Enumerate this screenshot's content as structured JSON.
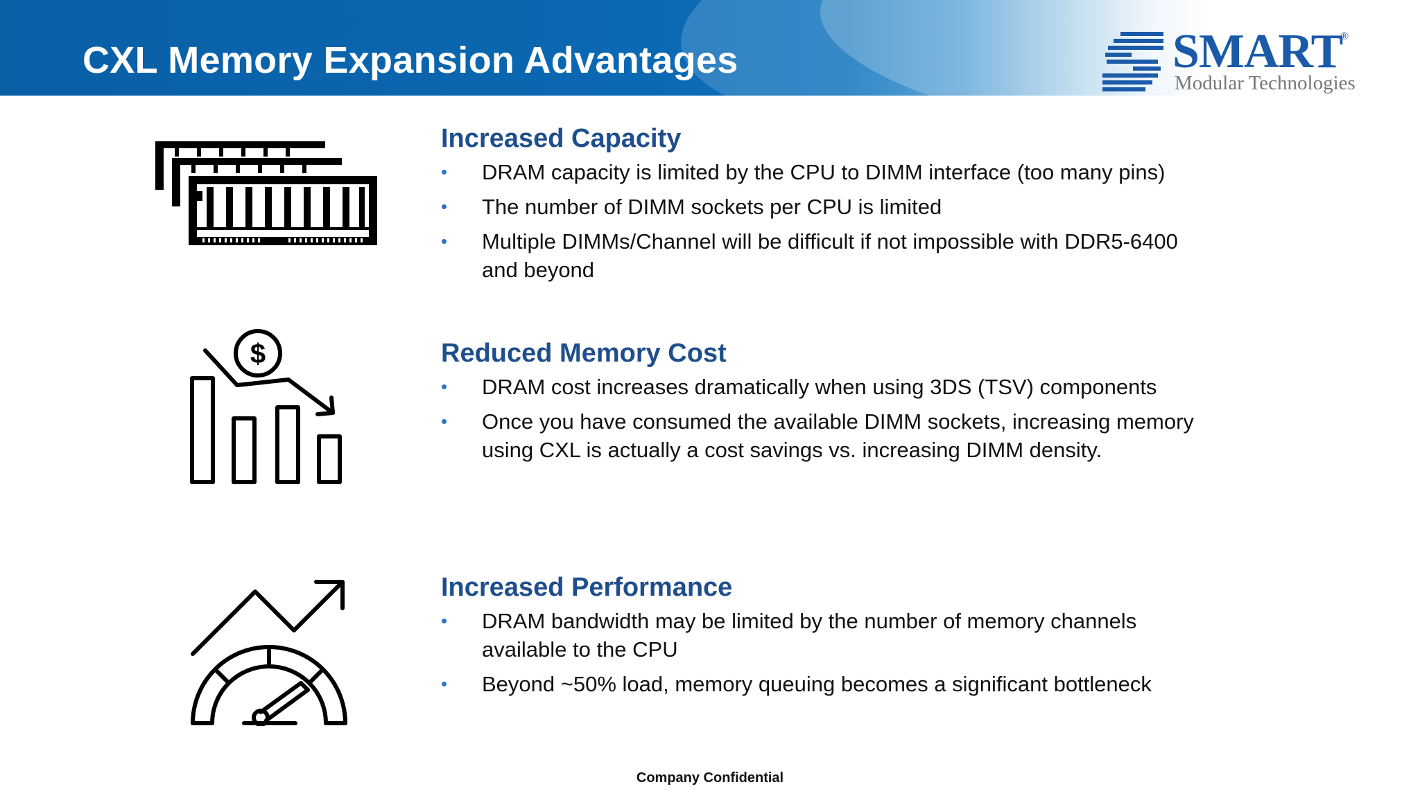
{
  "slide": {
    "title": "CXL Memory Expansion Advantages",
    "logo": {
      "name": "SMART",
      "registered": "®",
      "tagline": "Modular Technologies"
    },
    "footer": "Company Confidential"
  },
  "sections": [
    {
      "heading": "Increased Capacity",
      "icon": "memory-modules-icon",
      "bullets": [
        "DRAM capacity is limited by the CPU to DIMM interface (too many pins)",
        "The number of DIMM sockets per CPU is limited",
        "Multiple DIMMs/Channel will be difficult if not impossible with DDR5-6400 and beyond"
      ]
    },
    {
      "heading": "Reduced Memory Cost",
      "icon": "cost-decrease-chart-icon",
      "bullets": [
        "DRAM cost increases dramatically when using 3DS (TSV) components",
        "Once you have consumed the available DIMM sockets, increasing memory using CXL is actually a cost savings vs. increasing DIMM density."
      ]
    },
    {
      "heading": "Increased Performance",
      "icon": "performance-gauge-icon",
      "bullets": [
        "DRAM bandwidth may be limited by the number of memory channels available to the CPU",
        "Beyond ~50% load, memory queuing becomes a significant bottleneck"
      ]
    }
  ],
  "colors": {
    "header_blue": "#0b68b3",
    "heading_blue": "#1f4e8c",
    "bullet_blue": "#2e73c6"
  }
}
